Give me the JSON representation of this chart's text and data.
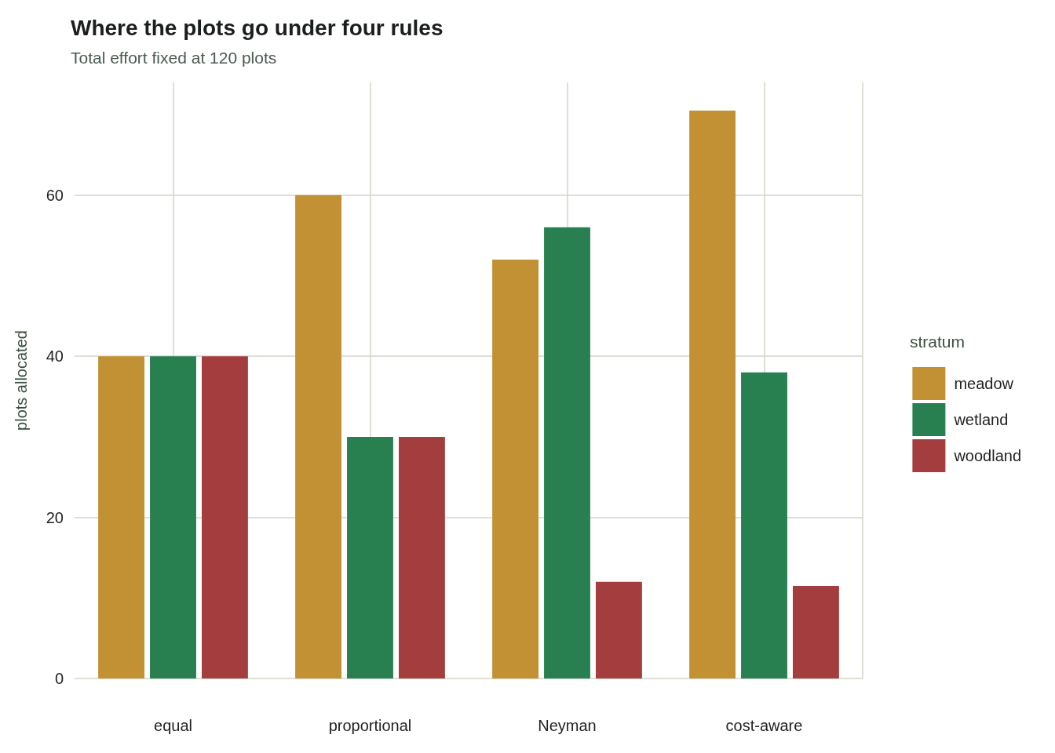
{
  "chart_data": {
    "type": "bar",
    "title": "Where the plots go under four rules",
    "subtitle": "Total effort fixed at 120 plots",
    "ylabel": "plots allocated",
    "legend_title": "stratum",
    "categories": [
      "equal",
      "proportional",
      "Neyman",
      "cost-aware"
    ],
    "series": [
      {
        "name": "meadow",
        "color": "#c19133",
        "values": [
          40,
          60,
          52,
          70.5
        ]
      },
      {
        "name": "wetland",
        "color": "#288050",
        "values": [
          40,
          30,
          56,
          38
        ]
      },
      {
        "name": "woodland",
        "color": "#a43e3e",
        "values": [
          40,
          30,
          12,
          11.5
        ]
      }
    ],
    "ylim": [
      0,
      74
    ],
    "yticks": [
      0,
      20,
      40,
      60
    ],
    "grid": true,
    "legend": "right"
  }
}
